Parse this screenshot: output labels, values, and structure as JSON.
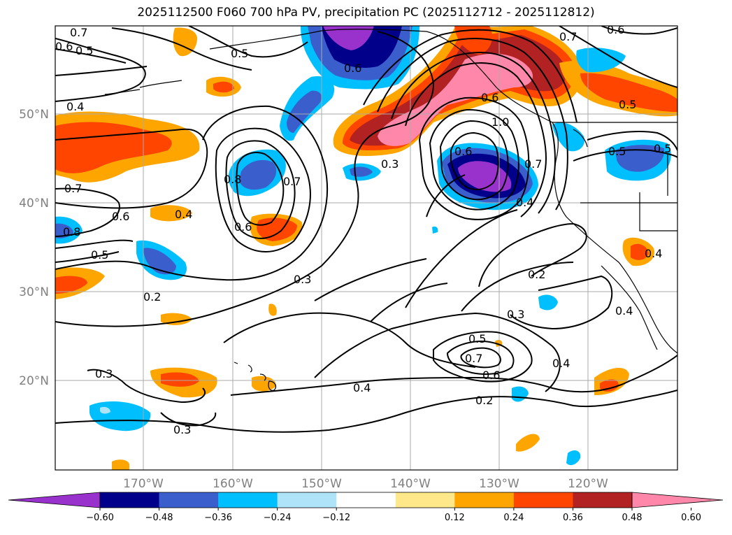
{
  "title": "2025112500 F060 700 hPa PV, precipitation PC (2025112712 - 2025112812)",
  "lat_labels": [
    "50°N",
    "40°N",
    "30°N",
    "20°N"
  ],
  "lon_labels": [
    "170°W",
    "160°W",
    "150°W",
    "140°W",
    "130°W",
    "120°W"
  ],
  "contour_labels": [
    "0.7",
    "0.6",
    "0.5",
    "0.5",
    "0.4",
    "0.6",
    "0.6",
    "1.0",
    "0.7",
    "0.6",
    "0.7",
    "0.6",
    "0.5",
    "0.5",
    "0.5",
    "0.3",
    "0.8",
    "0.7",
    "0.6",
    "0.4",
    "0.7",
    "0.6",
    "0.8",
    "0.5",
    "0.2",
    "0.3",
    "0.4",
    "0.4",
    "0.2",
    "0.3",
    "0.4",
    "0.5",
    "0.7",
    "0.6",
    "0.4",
    "0.4",
    "0.3",
    "0.2",
    "0.3"
  ],
  "colorbar": {
    "ticks": [
      "−0.60",
      "−0.48",
      "−0.36",
      "−0.24",
      "−0.12",
      "0.12",
      "0.24",
      "0.36",
      "0.48",
      "0.60"
    ],
    "colors": [
      "#9932cc",
      "#00008b",
      "#3a5fcd",
      "#00bfff",
      "#aee3f8",
      "#ffffff",
      "#ffe88a",
      "#ffa500",
      "#ff4500",
      "#b22222",
      "#ff88aa"
    ]
  }
}
